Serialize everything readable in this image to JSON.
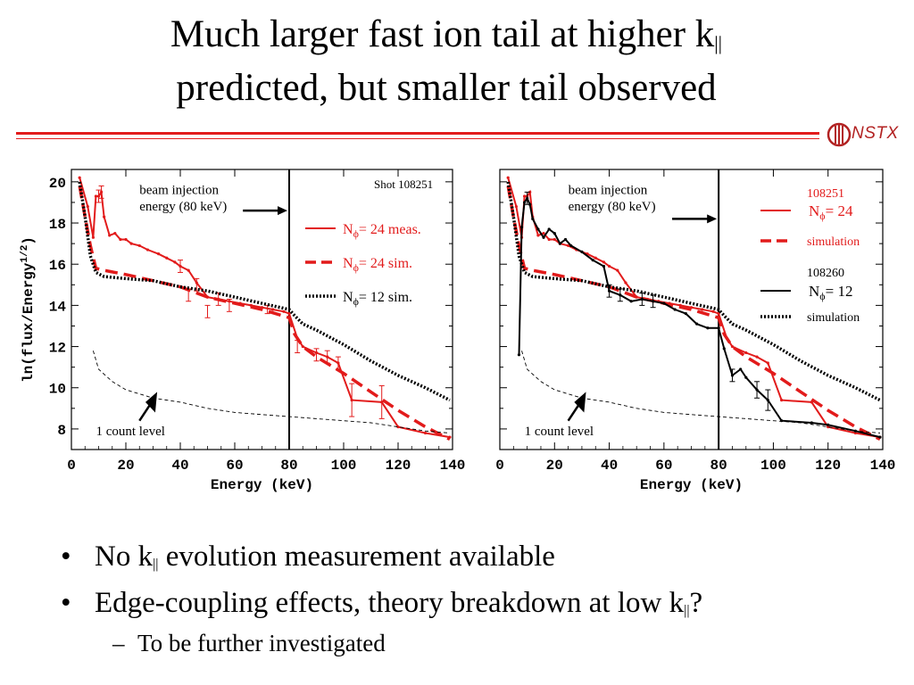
{
  "slide": {
    "title_line1_pre": "Much larger fast ion tail at higher k",
    "title_sub": "||",
    "title_line2": "predicted, but smaller tail observed",
    "logo_text": "NSTX",
    "bullets": [
      {
        "pre": "No k",
        "sub": "||",
        "post": " evolution measurement available"
      },
      {
        "pre": "Edge-coupling effects, theory breakdown at low k",
        "sub": "||",
        "post": "?"
      }
    ],
    "sub_bullet": "To be further investigated",
    "bullet_char": "•",
    "dash_char": "–"
  },
  "colors": {
    "red": "#e21b1b",
    "black": "#000000"
  },
  "chart_data": [
    {
      "type": "line",
      "xlabel": "Energy (keV)",
      "ylabel": "ln(flux/Energy",
      "ylabel_sup": "1/2",
      "ylabel_close": ")",
      "xlim": [
        0,
        140
      ],
      "ylim": [
        7,
        20.6
      ],
      "xticks": [
        0,
        20,
        40,
        60,
        80,
        100,
        120,
        140
      ],
      "yticks": [
        8,
        10,
        12,
        14,
        16,
        18,
        20
      ],
      "annotations": {
        "shot": "Shot 108251",
        "beam1": "beam injection",
        "beam2": "energy (80 keV)",
        "count": "1 count level"
      },
      "legend": [
        {
          "pre": "N",
          "sub": "ϕ",
          "post": "= 24 meas.",
          "color": "#e21b1b",
          "style": "solid"
        },
        {
          "pre": "N",
          "sub": "ϕ",
          "post": "= 24 sim.",
          "color": "#e21b1b",
          "style": "dashed"
        },
        {
          "pre": "N",
          "sub": "ϕ",
          "post": "= 12 sim.",
          "color": "#000000",
          "style": "dotted"
        }
      ],
      "vline_x": 80,
      "series": [
        {
          "style": "solid",
          "color": "#e21b1b",
          "x": [
            3,
            6,
            8,
            9,
            10,
            11,
            12,
            14,
            16,
            18,
            20,
            22,
            25,
            28,
            32,
            35,
            38,
            40,
            43,
            46,
            50,
            54,
            58,
            62,
            66,
            70,
            74,
            78,
            80,
            83,
            85,
            90,
            94,
            98,
            103,
            114,
            120,
            130,
            139
          ],
          "y": [
            20.2,
            18.8,
            17.3,
            19.3,
            19.3,
            19.5,
            18.3,
            17.4,
            17.5,
            17.2,
            17.2,
            17.0,
            16.9,
            16.7,
            16.5,
            16.3,
            16.1,
            15.9,
            15.7,
            15.1,
            14.4,
            14.3,
            14.2,
            14.1,
            14.0,
            13.9,
            13.8,
            13.7,
            13.6,
            12.4,
            12.0,
            11.7,
            11.5,
            11.2,
            9.4,
            9.3,
            8.1,
            7.8,
            7.6
          ],
          "errorbars": [
            {
              "x": 10,
              "y": 19.3,
              "e": 0.3
            },
            {
              "x": 11,
              "y": 19.5,
              "e": 0.3
            },
            {
              "x": 40,
              "y": 15.9,
              "e": 0.3
            },
            {
              "x": 43,
              "y": 14.5,
              "e": 0.3
            },
            {
              "x": 46,
              "y": 15.0,
              "e": 0.3
            },
            {
              "x": 50,
              "y": 13.7,
              "e": 0.3
            },
            {
              "x": 54,
              "y": 14.3,
              "e": 0.3
            },
            {
              "x": 58,
              "y": 14.0,
              "e": 0.3
            },
            {
              "x": 72,
              "y": 13.8,
              "e": 0.2
            },
            {
              "x": 83,
              "y": 12.0,
              "e": 0.3
            },
            {
              "x": 90,
              "y": 11.6,
              "e": 0.3
            },
            {
              "x": 94,
              "y": 11.5,
              "e": 0.3
            },
            {
              "x": 98,
              "y": 11.2,
              "e": 0.3
            },
            {
              "x": 103,
              "y": 9.4,
              "e": 0.8
            },
            {
              "x": 114,
              "y": 9.3,
              "e": 0.8
            }
          ]
        },
        {
          "style": "dashed",
          "color": "#e21b1b",
          "x": [
            3,
            5,
            7,
            9,
            12,
            20,
            30,
            40,
            50,
            60,
            70,
            80,
            82,
            85,
            90,
            100,
            110,
            120,
            130,
            139
          ],
          "y": [
            19.8,
            18.3,
            16.9,
            15.8,
            15.7,
            15.5,
            15.2,
            14.9,
            14.4,
            14.1,
            13.8,
            13.4,
            12.6,
            12.0,
            11.5,
            10.7,
            9.8,
            8.9,
            8.1,
            7.5
          ]
        },
        {
          "style": "dotted",
          "color": "#000000",
          "x": [
            3,
            5,
            7,
            9,
            12,
            20,
            30,
            40,
            50,
            60,
            70,
            80,
            82,
            85,
            90,
            100,
            110,
            120,
            130,
            139
          ],
          "y": [
            20.0,
            18.3,
            16.4,
            15.6,
            15.4,
            15.3,
            15.2,
            14.9,
            14.7,
            14.4,
            14.1,
            13.8,
            13.5,
            13.1,
            12.8,
            12.1,
            11.3,
            10.6,
            10.0,
            9.4
          ]
        },
        {
          "style": "thin-dashed",
          "color": "#000000",
          "x": [
            8,
            10,
            15,
            20,
            30,
            40,
            50,
            60,
            70,
            80,
            90,
            100,
            110,
            120,
            130,
            139
          ],
          "y": [
            11.8,
            10.9,
            10.3,
            9.9,
            9.5,
            9.3,
            9.0,
            8.8,
            8.7,
            8.6,
            8.5,
            8.4,
            8.3,
            8.1,
            7.9,
            7.8
          ]
        }
      ]
    },
    {
      "type": "line",
      "xlabel": "Energy (keV)",
      "xlim": [
        0,
        140
      ],
      "ylim": [
        7,
        20.6
      ],
      "xticks": [
        0,
        20,
        40,
        60,
        80,
        100,
        120,
        140
      ],
      "annotations": {
        "beam1": "beam injection",
        "beam2": "energy (80 keV)",
        "count": "1 count level"
      },
      "legend": [
        {
          "shot": "108251",
          "pre": "N",
          "sub": "ϕ",
          "post": "= 24",
          "color": "#e21b1b",
          "style": "solid"
        },
        {
          "label": "simulation",
          "color": "#e21b1b",
          "style": "dashed"
        },
        {
          "shot": "108260",
          "pre": "N",
          "sub": "ϕ",
          "post": "= 12",
          "color": "#000000",
          "style": "solid"
        },
        {
          "label": "simulation",
          "color": "#000000",
          "style": "dotted"
        }
      ],
      "vline_x": 80,
      "series": [
        {
          "style": "solid",
          "color": "#e21b1b",
          "x": [
            3,
            6,
            8,
            9,
            10,
            11,
            12,
            14,
            16,
            18,
            20,
            22,
            25,
            28,
            32,
            35,
            38,
            40,
            43,
            46,
            50,
            54,
            58,
            62,
            66,
            70,
            74,
            78,
            80,
            83,
            85,
            90,
            94,
            98,
            103,
            114,
            120,
            130,
            139
          ],
          "y": [
            20.2,
            18.8,
            17.3,
            19.3,
            19.3,
            19.5,
            18.3,
            17.4,
            17.5,
            17.2,
            17.2,
            17.0,
            16.9,
            16.7,
            16.5,
            16.3,
            16.1,
            15.9,
            15.7,
            15.1,
            14.4,
            14.3,
            14.2,
            14.1,
            14.0,
            13.9,
            13.8,
            13.7,
            13.6,
            12.4,
            12.0,
            11.7,
            11.5,
            11.2,
            9.4,
            9.3,
            8.1,
            7.8,
            7.6
          ]
        },
        {
          "style": "dashed",
          "color": "#e21b1b",
          "x": [
            3,
            5,
            7,
            9,
            12,
            20,
            30,
            40,
            50,
            60,
            70,
            80,
            82,
            85,
            90,
            100,
            110,
            120,
            130,
            139
          ],
          "y": [
            19.8,
            18.3,
            16.9,
            15.8,
            15.7,
            15.5,
            15.2,
            14.9,
            14.4,
            14.1,
            13.8,
            13.4,
            12.6,
            12.0,
            11.5,
            10.7,
            9.8,
            8.9,
            8.1,
            7.5
          ]
        },
        {
          "style": "dotted",
          "color": "#000000",
          "x": [
            3,
            5,
            7,
            9,
            12,
            20,
            30,
            40,
            50,
            60,
            70,
            80,
            82,
            85,
            90,
            100,
            110,
            120,
            130,
            139
          ],
          "y": [
            20.0,
            18.3,
            16.4,
            15.6,
            15.4,
            15.3,
            15.2,
            14.9,
            14.7,
            14.4,
            14.1,
            13.8,
            13.5,
            13.1,
            12.8,
            12.1,
            11.3,
            10.6,
            10.0,
            9.4
          ]
        },
        {
          "style": "solid",
          "color": "#000000",
          "x": [
            7,
            8,
            9,
            10,
            11,
            12,
            14,
            16,
            18,
            20,
            22,
            24,
            26,
            30,
            34,
            38,
            40,
            44,
            48,
            52,
            56,
            60,
            64,
            68,
            72,
            76,
            80,
            82,
            85,
            88,
            90,
            94,
            98,
            103,
            114,
            120,
            130,
            139
          ],
          "y": [
            11.6,
            17.8,
            19.0,
            19.2,
            18.9,
            18.2,
            17.7,
            17.3,
            17.7,
            17.5,
            17.0,
            17.2,
            16.9,
            16.6,
            16.2,
            15.9,
            14.7,
            14.5,
            14.2,
            14.3,
            14.2,
            14.1,
            13.8,
            13.6,
            13.1,
            12.9,
            12.9,
            11.9,
            10.6,
            10.9,
            10.5,
            9.9,
            9.4,
            8.4,
            8.3,
            8.2,
            7.9,
            7.6
          ],
          "errorbars": [
            {
              "x": 10,
              "y": 19.2,
              "e": 0.3
            },
            {
              "x": 40,
              "y": 14.7,
              "e": 0.3
            },
            {
              "x": 44,
              "y": 14.5,
              "e": 0.3
            },
            {
              "x": 52,
              "y": 14.3,
              "e": 0.3
            },
            {
              "x": 56,
              "y": 14.2,
              "e": 0.3
            },
            {
              "x": 85,
              "y": 10.6,
              "e": 0.3
            },
            {
              "x": 94,
              "y": 9.9,
              "e": 0.4
            },
            {
              "x": 98,
              "y": 9.4,
              "e": 0.5
            }
          ]
        },
        {
          "style": "thin-dashed",
          "color": "#000000",
          "x": [
            8,
            10,
            15,
            20,
            30,
            40,
            50,
            60,
            70,
            80,
            90,
            100,
            110,
            120,
            130,
            139
          ],
          "y": [
            11.8,
            10.9,
            10.3,
            9.9,
            9.5,
            9.3,
            9.0,
            8.8,
            8.7,
            8.6,
            8.5,
            8.4,
            8.3,
            8.1,
            7.9,
            7.8
          ]
        }
      ]
    }
  ]
}
